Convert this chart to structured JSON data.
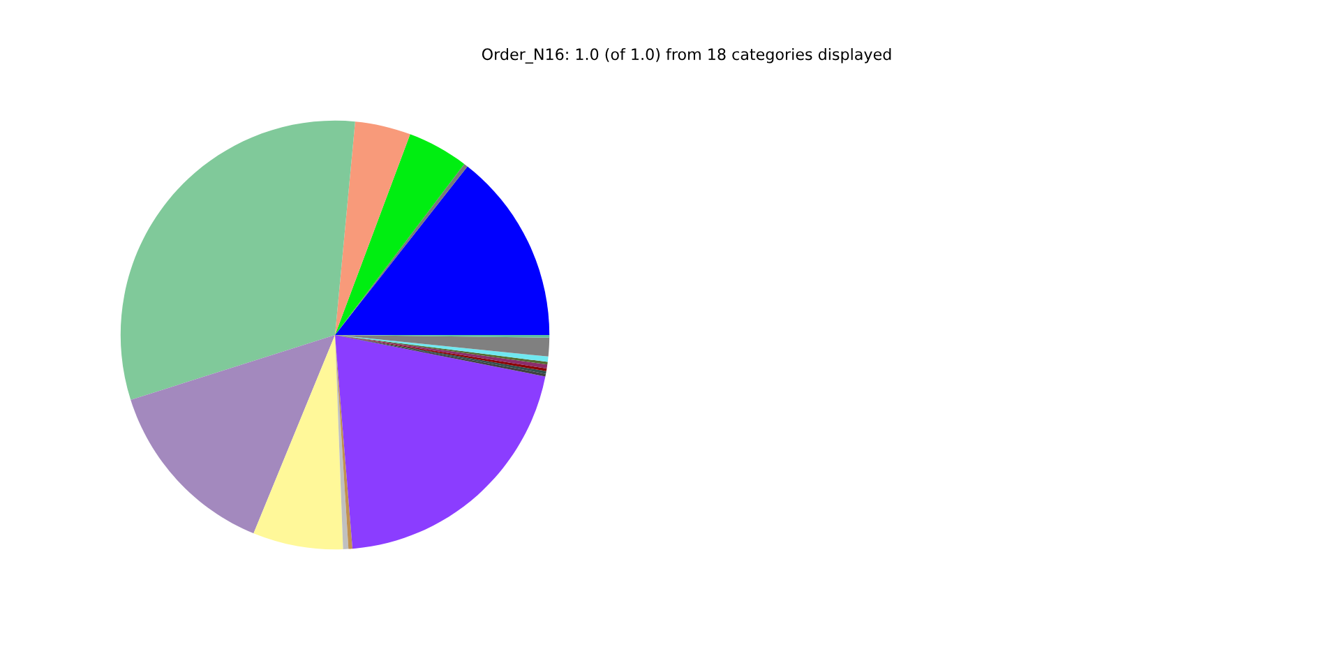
{
  "chart_data": {
    "type": "pie",
    "title": "Order_N16: 1.0 (of 1.0) from 18 categories displayed",
    "categories": [
      null,
      null,
      null,
      null,
      null,
      null,
      null,
      null,
      null,
      null,
      null,
      null,
      null,
      null,
      null,
      null,
      null,
      null
    ],
    "values": [
      14.4,
      0.3,
      4.6,
      4.2,
      31.4,
      13.9,
      6.8,
      0.4,
      0.3,
      20.6,
      0.2,
      0.2,
      0.2,
      0.3,
      0.2,
      0.4,
      1.4,
      0.2
    ],
    "colors": [
      "#0000ff",
      "#7a7a7a",
      "#00ee11",
      "#f89a7a",
      "#80c99a",
      "#a389be",
      "#fff899",
      "#c0c0c0",
      "#c09050",
      "#8b3dff",
      "#404040",
      "#2f4f4f",
      "#8b0000",
      "#8b2d6b",
      "#556b2f",
      "#70e8f0",
      "#808080",
      "#60c0a0"
    ]
  }
}
